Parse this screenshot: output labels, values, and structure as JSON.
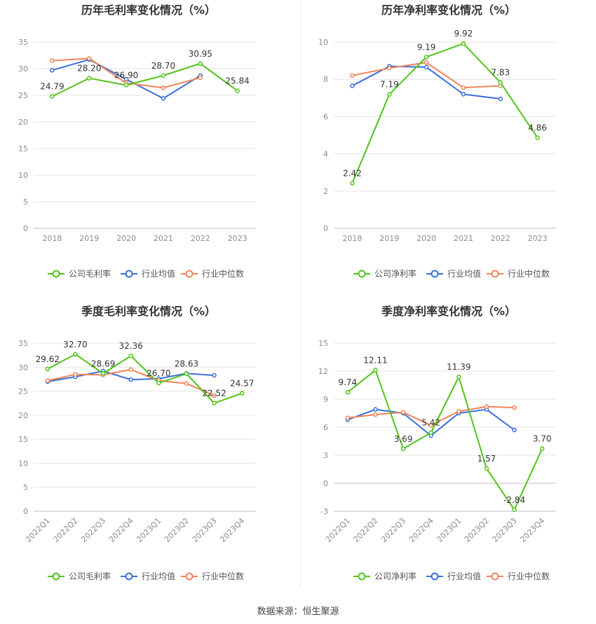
{
  "source": "数据来源：恒生聚源",
  "colors": {
    "company": "#52c41a",
    "industry_avg": "#3b6fd6",
    "industry_median": "#f0845c",
    "grid": "#e6e6e6",
    "axis_text": "#8c8c8c",
    "label_text": "#333333",
    "title": "#333333"
  },
  "chart_data": [
    {
      "type": "line",
      "title": "历年毛利率变化情况（%）",
      "categories": [
        "2018",
        "2019",
        "2020",
        "2021",
        "2022",
        "2023"
      ],
      "ylim": [
        0,
        35
      ],
      "yticks": [
        0,
        5,
        10,
        15,
        20,
        25,
        30,
        35
      ],
      "series": [
        {
          "name": "公司毛利率",
          "key": "company",
          "values": [
            24.79,
            28.2,
            26.9,
            28.7,
            30.95,
            25.84
          ],
          "labels": true
        },
        {
          "name": "行业均值",
          "key": "industry_avg",
          "values": [
            29.7,
            31.7,
            28.0,
            24.4,
            28.7,
            null
          ]
        },
        {
          "name": "行业中位数",
          "key": "industry_median",
          "values": [
            31.5,
            31.9,
            27.3,
            26.4,
            28.3,
            null
          ]
        }
      ],
      "legend": "bottom",
      "rotate_x": false
    },
    {
      "type": "line",
      "title": "历年净利率变化情况（%）",
      "categories": [
        "2018",
        "2019",
        "2020",
        "2021",
        "2022",
        "2023"
      ],
      "ylim": [
        0,
        10
      ],
      "yticks": [
        0,
        2,
        4,
        6,
        8,
        10
      ],
      "series": [
        {
          "name": "公司净利率",
          "key": "company",
          "values": [
            2.42,
            7.19,
            9.19,
            9.92,
            7.83,
            4.86
          ],
          "labels": true
        },
        {
          "name": "行业均值",
          "key": "industry_avg",
          "values": [
            7.65,
            8.7,
            8.65,
            7.2,
            6.95,
            null
          ]
        },
        {
          "name": "行业中位数",
          "key": "industry_median",
          "values": [
            8.2,
            8.6,
            8.9,
            7.55,
            7.65,
            null
          ]
        }
      ],
      "legend": "bottom",
      "rotate_x": false
    },
    {
      "type": "line",
      "title": "季度毛利率变化情况（%）",
      "categories": [
        "2022Q1",
        "2022Q2",
        "2022Q3",
        "2022Q4",
        "2023Q1",
        "2023Q2",
        "2023Q3",
        "2023Q4"
      ],
      "ylim": [
        0,
        35
      ],
      "yticks": [
        0,
        5,
        10,
        15,
        20,
        25,
        30,
        35
      ],
      "series": [
        {
          "name": "公司毛利率",
          "key": "company",
          "values": [
            29.62,
            32.7,
            28.69,
            32.36,
            26.7,
            28.63,
            22.52,
            24.57
          ],
          "labels": true
        },
        {
          "name": "行业均值",
          "key": "industry_avg",
          "values": [
            27.0,
            28.0,
            29.2,
            27.4,
            27.6,
            28.7,
            28.3,
            null
          ]
        },
        {
          "name": "行业中位数",
          "key": "industry_median",
          "values": [
            27.2,
            28.5,
            28.4,
            29.5,
            27.2,
            26.6,
            24.1,
            null
          ]
        }
      ],
      "legend": "bottom",
      "rotate_x": true
    },
    {
      "type": "line",
      "title": "季度净利率变化情况（%）",
      "categories": [
        "2022Q1",
        "2022Q2",
        "2022Q3",
        "2022Q4",
        "2023Q1",
        "2023Q2",
        "2023Q3",
        "2023Q4"
      ],
      "ylim": [
        -3,
        15
      ],
      "yticks": [
        -3,
        0,
        3,
        6,
        9,
        12,
        15
      ],
      "series": [
        {
          "name": "公司净利率",
          "key": "company",
          "values": [
            9.74,
            12.11,
            3.69,
            5.42,
            11.39,
            1.57,
            -2.84,
            3.7
          ],
          "labels": true
        },
        {
          "name": "行业均值",
          "key": "industry_avg",
          "values": [
            6.8,
            7.9,
            7.5,
            5.1,
            7.5,
            7.9,
            5.7,
            null
          ]
        },
        {
          "name": "行业中位数",
          "key": "industry_median",
          "values": [
            7.0,
            7.35,
            7.6,
            6.2,
            7.7,
            8.2,
            8.1,
            null
          ]
        }
      ],
      "legend": "bottom",
      "rotate_x": true
    }
  ]
}
